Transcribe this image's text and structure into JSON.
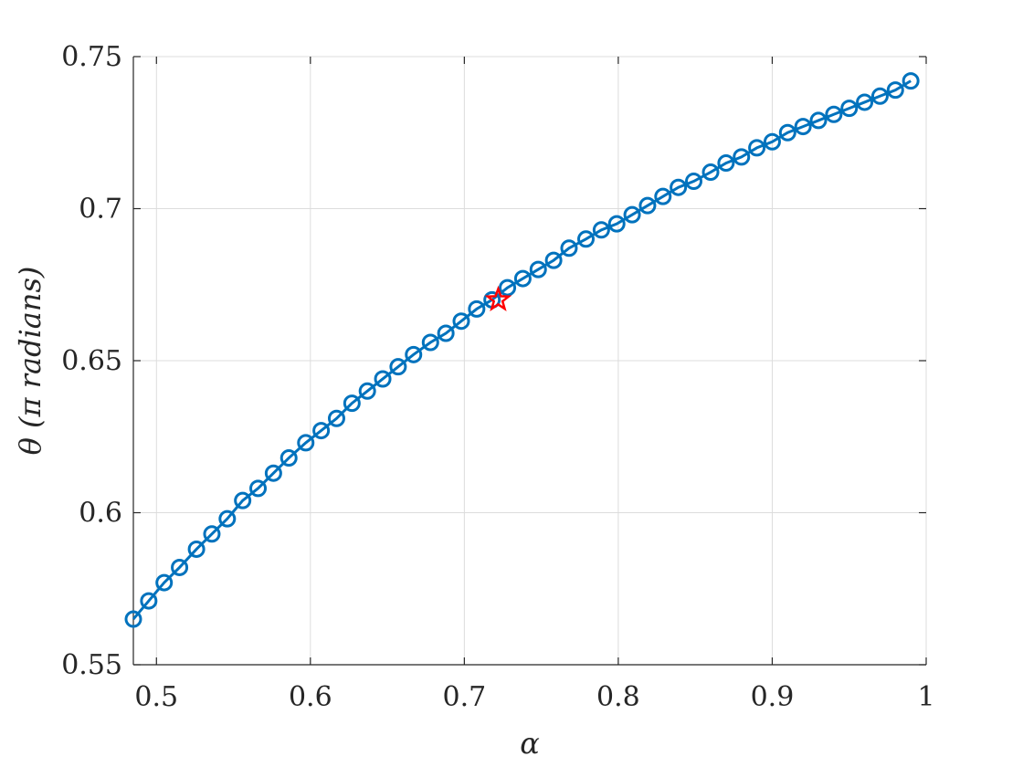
{
  "chart_data": {
    "type": "line",
    "xlabel": "α",
    "ylabel": "θ (π radians)",
    "xlim": [
      0.485,
      1.0
    ],
    "ylim": [
      0.55,
      0.75
    ],
    "xticks": [
      "0.5",
      "0.6",
      "0.7",
      "0.8",
      "0.9",
      "1"
    ],
    "yticks": [
      "0.55",
      "0.6",
      "0.65",
      "0.7",
      "0.75"
    ],
    "grid": true,
    "series": [
      {
        "marker": "circle",
        "color": "#0072BD",
        "x": [
          0.485,
          0.495,
          0.505,
          0.515,
          0.526,
          0.536,
          0.546,
          0.556,
          0.566,
          0.576,
          0.586,
          0.597,
          0.607,
          0.617,
          0.627,
          0.637,
          0.647,
          0.657,
          0.667,
          0.678,
          0.688,
          0.698,
          0.708,
          0.718,
          0.728,
          0.738,
          0.748,
          0.758,
          0.768,
          0.779,
          0.789,
          0.799,
          0.809,
          0.819,
          0.829,
          0.839,
          0.849,
          0.86,
          0.87,
          0.88,
          0.89,
          0.9,
          0.91,
          0.92,
          0.93,
          0.94,
          0.95,
          0.96,
          0.97,
          0.98,
          0.99
        ],
        "y": [
          0.565,
          0.571,
          0.577,
          0.582,
          0.588,
          0.593,
          0.598,
          0.604,
          0.608,
          0.613,
          0.618,
          0.623,
          0.627,
          0.631,
          0.636,
          0.64,
          0.644,
          0.648,
          0.652,
          0.656,
          0.659,
          0.663,
          0.667,
          0.67,
          0.674,
          0.677,
          0.68,
          0.683,
          0.687,
          0.69,
          0.693,
          0.695,
          0.698,
          0.701,
          0.704,
          0.707,
          0.709,
          0.712,
          0.715,
          0.717,
          0.72,
          0.722,
          0.725,
          0.727,
          0.729,
          0.731,
          0.733,
          0.735,
          0.737,
          0.739,
          0.742
        ]
      },
      {
        "marker": "star",
        "color": "#FF0000",
        "x": [
          0.722
        ],
        "y": [
          0.67
        ]
      }
    ]
  }
}
